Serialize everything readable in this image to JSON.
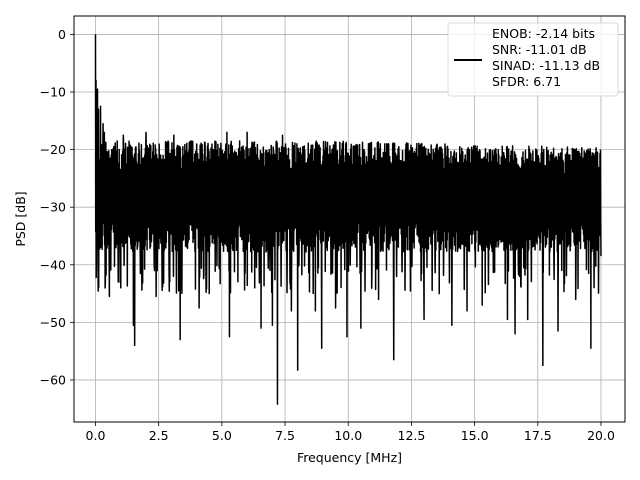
{
  "chart_data": {
    "type": "line",
    "title": "",
    "xlabel": "Frequency [MHz]",
    "ylabel": "PSD [dB]",
    "xlim": [
      -0.85,
      20.95
    ],
    "ylim": [
      -67.3,
      3.2
    ],
    "xticks": [
      0.0,
      2.5,
      5.0,
      7.5,
      10.0,
      12.5,
      15.0,
      17.5,
      20.0
    ],
    "xtick_labels": [
      "0.0",
      "2.5",
      "5.0",
      "7.5",
      "10.0",
      "12.5",
      "15.0",
      "17.5",
      "20.0"
    ],
    "yticks": [
      0,
      -10,
      -20,
      -30,
      -40,
      -50,
      -60
    ],
    "ytick_labels": [
      "0",
      "−10",
      "−20",
      "−30",
      "−40",
      "−50",
      "−60"
    ],
    "grid": true,
    "line_color": "#000000",
    "legend": {
      "placement": "top-right",
      "lines": [
        "ENOB: -2.14 bits",
        "SNR: -11.01 dB",
        "SINAD: -11.13 dB",
        "SFDR: 6.71"
      ]
    },
    "series": [
      {
        "x_start": 0.0,
        "x_end": 20.0,
        "num_points": 2049,
        "envelope_upper_db": -21,
        "envelope_lower_db": -36,
        "typical_floor_db": -30,
        "peaks": [
          {
            "x": 0.0,
            "y": 0.0
          },
          {
            "x": 0.02,
            "y": -8.0
          },
          {
            "x": 0.05,
            "y": -10.5
          },
          {
            "x": 0.08,
            "y": -9.5
          },
          {
            "x": 0.12,
            "y": -13.0
          },
          {
            "x": 0.2,
            "y": -12.5
          },
          {
            "x": 0.3,
            "y": -15.5
          },
          {
            "x": 0.35,
            "y": -17.0
          }
        ],
        "dips": [
          {
            "x": 0.1,
            "y": -41.2
          },
          {
            "x": 0.55,
            "y": -45.5
          },
          {
            "x": 0.9,
            "y": -43.0
          },
          {
            "x": 1.0,
            "y": -44.0
          },
          {
            "x": 1.55,
            "y": -54.0
          },
          {
            "x": 1.5,
            "y": -50.5
          },
          {
            "x": 2.4,
            "y": -45.5
          },
          {
            "x": 3.35,
            "y": -53.0
          },
          {
            "x": 4.1,
            "y": -47.5
          },
          {
            "x": 4.5,
            "y": -45.0
          },
          {
            "x": 5.3,
            "y": -52.5
          },
          {
            "x": 6.3,
            "y": -44.0
          },
          {
            "x": 6.55,
            "y": -51.0
          },
          {
            "x": 7.0,
            "y": -50.5
          },
          {
            "x": 7.2,
            "y": -64.2
          },
          {
            "x": 7.75,
            "y": -48.0
          },
          {
            "x": 8.0,
            "y": -58.3
          },
          {
            "x": 8.7,
            "y": -48.0
          },
          {
            "x": 8.95,
            "y": -54.5
          },
          {
            "x": 9.5,
            "y": -47.5
          },
          {
            "x": 9.95,
            "y": -52.5
          },
          {
            "x": 10.5,
            "y": -51.0
          },
          {
            "x": 11.2,
            "y": -46.0
          },
          {
            "x": 11.8,
            "y": -56.5
          },
          {
            "x": 13.0,
            "y": -49.5
          },
          {
            "x": 13.6,
            "y": -45.0
          },
          {
            "x": 14.1,
            "y": -50.5
          },
          {
            "x": 14.7,
            "y": -48.0
          },
          {
            "x": 15.3,
            "y": -47.0
          },
          {
            "x": 16.3,
            "y": -49.5
          },
          {
            "x": 16.6,
            "y": -52.0
          },
          {
            "x": 17.1,
            "y": -49.5
          },
          {
            "x": 17.7,
            "y": -57.5
          },
          {
            "x": 18.3,
            "y": -51.5
          },
          {
            "x": 19.0,
            "y": -46.0
          },
          {
            "x": 19.6,
            "y": -54.5
          },
          {
            "x": 20.0,
            "y": -38.5
          }
        ],
        "highs": [
          {
            "x": 1.1,
            "y": -17.5
          },
          {
            "x": 2.0,
            "y": -17.0
          },
          {
            "x": 3.1,
            "y": -17.5
          },
          {
            "x": 5.2,
            "y": -17.0
          },
          {
            "x": 6.0,
            "y": -17.0
          },
          {
            "x": 7.4,
            "y": -17.5
          },
          {
            "x": 9.9,
            "y": -19.0
          },
          {
            "x": 12.0,
            "y": -19.5
          },
          {
            "x": 14.8,
            "y": -20.0
          },
          {
            "x": 17.5,
            "y": -21.5
          },
          {
            "x": 19.3,
            "y": -21.5
          }
        ]
      }
    ]
  }
}
